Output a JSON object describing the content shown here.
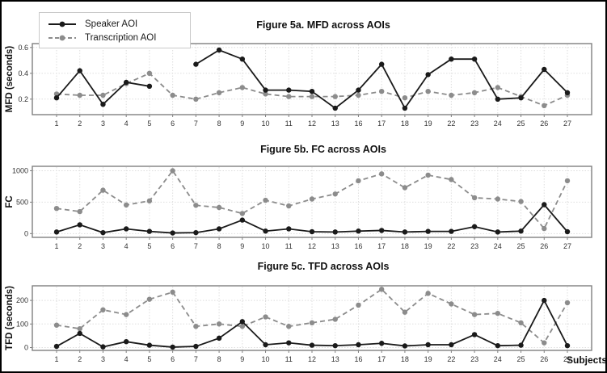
{
  "figure": {
    "x_axis_label": "Subjects",
    "categories": [
      "1",
      "2",
      "3",
      "4",
      "5",
      "6",
      "7",
      "8",
      "9",
      "10",
      "11",
      "12",
      "13",
      "16",
      "17",
      "18",
      "19",
      "22",
      "23",
      "24",
      "25",
      "26",
      "27"
    ],
    "legend": [
      {
        "label": "Speaker AOI",
        "color": "#1a1a1a",
        "style": "solid"
      },
      {
        "label": "Transcription AOI",
        "color": "#8c8c8c",
        "style": "dashed"
      }
    ],
    "colors": {
      "speaker": "#1a1a1a",
      "transcription": "#8c8c8c",
      "grid": "#dedede",
      "panel_border": "#7f7f7f",
      "tick_text": "#333333"
    }
  },
  "chart_data": [
    {
      "id": "mfd",
      "type": "line",
      "title": "Figure 5a. MFD across AOIs",
      "ylabel": "MFD (seconds)",
      "xlabel": "",
      "yticks": [
        0.2,
        0.4,
        0.6
      ],
      "ytick_labels": [
        "0.2",
        "0.4",
        "0.6"
      ],
      "ylim": [
        0.08,
        0.63
      ],
      "grid": true,
      "legend_position": "top-left",
      "categories": [
        "1",
        "2",
        "3",
        "4",
        "5",
        "6",
        "7",
        "8",
        "9",
        "10",
        "11",
        "12",
        "13",
        "16",
        "17",
        "18",
        "19",
        "22",
        "23",
        "24",
        "25",
        "26",
        "27"
      ],
      "series": [
        {
          "name": "Speaker AOI",
          "color": "#1a1a1a",
          "dash": "solid",
          "values": [
            0.21,
            0.42,
            0.16,
            0.33,
            0.3,
            null,
            0.47,
            0.58,
            0.51,
            0.27,
            0.27,
            0.26,
            0.13,
            0.27,
            0.47,
            0.13,
            0.39,
            0.51,
            0.51,
            0.2,
            0.21,
            0.43,
            0.25
          ]
        },
        {
          "name": "Transcription AOI",
          "color": "#8c8c8c",
          "dash": "dashed",
          "values": [
            0.24,
            0.23,
            0.23,
            0.32,
            0.4,
            0.23,
            0.2,
            0.25,
            0.29,
            0.24,
            0.22,
            0.22,
            0.22,
            0.23,
            0.26,
            0.21,
            0.26,
            0.23,
            0.25,
            0.29,
            0.22,
            0.15,
            0.23
          ]
        }
      ]
    },
    {
      "id": "fc",
      "type": "line",
      "title": "Figure 5b. FC across AOIs",
      "ylabel": "FC",
      "xlabel": "",
      "yticks": [
        0,
        500,
        1000
      ],
      "ytick_labels": [
        "0",
        "500",
        "1000"
      ],
      "ylim": [
        -60,
        1070
      ],
      "grid": true,
      "categories": [
        "1",
        "2",
        "3",
        "4",
        "5",
        "6",
        "7",
        "8",
        "9",
        "10",
        "11",
        "12",
        "13",
        "16",
        "17",
        "18",
        "19",
        "22",
        "23",
        "24",
        "25",
        "26",
        "27"
      ],
      "series": [
        {
          "name": "Speaker AOI",
          "color": "#1a1a1a",
          "dash": "solid",
          "values": [
            25,
            140,
            15,
            75,
            35,
            10,
            15,
            75,
            215,
            40,
            75,
            30,
            25,
            40,
            50,
            25,
            35,
            35,
            110,
            25,
            40,
            460,
            30
          ]
        },
        {
          "name": "Transcription AOI",
          "color": "#8c8c8c",
          "dash": "dashed",
          "values": [
            400,
            350,
            690,
            455,
            520,
            1000,
            450,
            415,
            320,
            530,
            440,
            550,
            630,
            840,
            950,
            730,
            930,
            860,
            570,
            550,
            510,
            80,
            840
          ]
        }
      ]
    },
    {
      "id": "tfd",
      "type": "line",
      "title": "Figure 5c. TFD across AOIs",
      "ylabel": "TFD (seconds)",
      "xlabel": "Subjects",
      "yticks": [
        0,
        100,
        200
      ],
      "ytick_labels": [
        "0",
        "100",
        "200"
      ],
      "ylim": [
        -12,
        262
      ],
      "grid": true,
      "categories": [
        "1",
        "2",
        "3",
        "4",
        "5",
        "6",
        "7",
        "8",
        "9",
        "10",
        "11",
        "12",
        "13",
        "16",
        "17",
        "18",
        "19",
        "22",
        "23",
        "24",
        "25",
        "26",
        "27"
      ],
      "series": [
        {
          "name": "Speaker AOI",
          "color": "#1a1a1a",
          "dash": "solid",
          "values": [
            5,
            60,
            3,
            25,
            10,
            2,
            5,
            40,
            110,
            12,
            20,
            10,
            8,
            12,
            18,
            7,
            12,
            12,
            55,
            8,
            10,
            200,
            8
          ]
        },
        {
          "name": "Transcription AOI",
          "color": "#8c8c8c",
          "dash": "dashed",
          "values": [
            95,
            80,
            160,
            140,
            205,
            235,
            90,
            100,
            90,
            130,
            90,
            105,
            120,
            180,
            247,
            150,
            230,
            185,
            140,
            145,
            105,
            20,
            190
          ]
        }
      ]
    }
  ]
}
